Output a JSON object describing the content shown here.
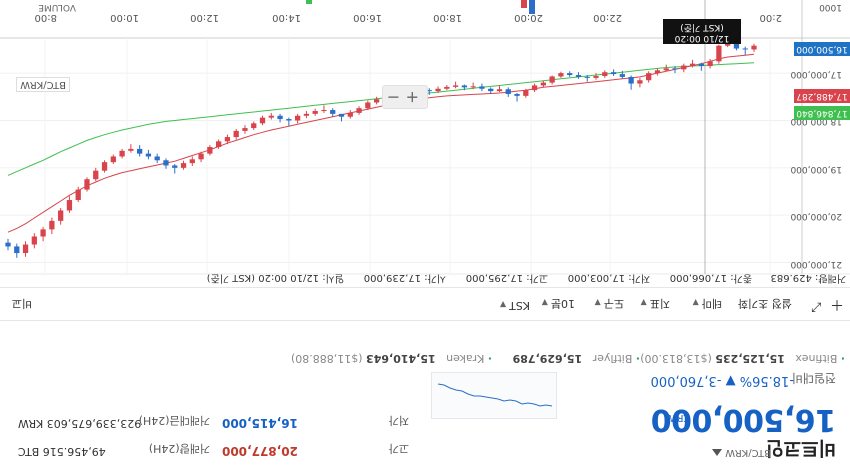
{
  "header": {
    "title": "비트코인",
    "pair": "BTC/KRW",
    "price": "16,500,000",
    "price_unit": "KRW",
    "change_label": "전일대비",
    "change_value": "-18.56% ▼ -3,760,000"
  },
  "stats": {
    "high_label": "고가",
    "high_value": "20,877,000",
    "low_label": "저가",
    "low_value": "16,415,000",
    "volume_label": "거래량(24H)",
    "volume_value": "49,456.516 BTC",
    "amount_label": "거래대금(24H)",
    "amount_value": "923,339,675,603 KRW"
  },
  "exchanges": [
    {
      "name": "Kraken",
      "value": "15,410,643",
      "sub": "($11,888.80)"
    },
    {
      "name": "Bitflyer",
      "value": "15,629,789",
      "sub": ""
    },
    {
      "name": "Bitfinex",
      "value": "15,125,235",
      "sub": "($13,813.00)"
    }
  ],
  "toolbar": {
    "expand_icon": "plus-icon",
    "fullscreen_icon": "expand-icon",
    "reset_label": "설정 초기화",
    "theme_label": "테마",
    "indicator_label": "지표",
    "draw_label": "도구",
    "interval_label": "10분",
    "timezone_label": "KST",
    "compare_label": "비교"
  },
  "chart_data": {
    "type": "candlestick",
    "ohlc_text": {
      "date": "일시: 12/10 00:20 (KST 기준)",
      "open": "시가: 17,239,000",
      "high": "고가: 17,295,000",
      "low": "저가: 17,003,000",
      "close": "종가: 17,066,000",
      "volume": "거래량: 429.683"
    },
    "x_ticks": [
      "8:00",
      "10:00",
      "12:00",
      "14:00",
      "16:00",
      "18:00",
      "20:00",
      "22:00",
      "2:00"
    ],
    "y_ticks": [
      "21,000,000",
      "20,000,000",
      "19,000,000",
      "18,000,000",
      "17,000,000"
    ],
    "crosshair_time": "12/10 00:20",
    "crosshair_note": "(KST 기준)",
    "pair_label": "BTC/KRW",
    "volume_label": "VOLUME",
    "volume_tick": "1000",
    "tags": [
      {
        "value": "16,500,000",
        "color": "#1f73c5"
      },
      {
        "value": "17,488,287",
        "color": "#d9434b"
      },
      {
        "value": "17,846,840",
        "color": "#3fbf4f"
      }
    ],
    "colors": {
      "up": "#d9434b",
      "down": "#2a6fc9",
      "ma_short": "#d9434b",
      "ma_long": "#3fbf4f"
    },
    "ylim": [
      16300000,
      21200000
    ],
    "candles": [
      [
        16.42,
        16.55,
        16.38,
        16.5
      ],
      [
        16.5,
        16.62,
        16.44,
        16.48
      ],
      [
        16.48,
        16.52,
        16.3,
        16.38
      ],
      [
        16.38,
        16.45,
        16.25,
        16.42
      ],
      [
        16.42,
        16.8,
        16.4,
        16.75
      ],
      [
        16.75,
        16.9,
        16.7,
        16.85
      ],
      [
        16.85,
        16.95,
        16.78,
        16.8
      ],
      [
        16.8,
        16.88,
        16.72,
        16.84
      ],
      [
        16.84,
        16.98,
        16.8,
        16.92
      ],
      [
        16.92,
        17.0,
        16.85,
        16.9
      ],
      [
        16.9,
        16.96,
        16.82,
        16.94
      ],
      [
        16.94,
        17.05,
        16.9,
        17.0
      ],
      [
        17.0,
        17.2,
        16.96,
        17.15
      ],
      [
        17.15,
        17.3,
        17.1,
        17.22
      ],
      [
        17.22,
        17.35,
        17.05,
        17.08
      ],
      [
        17.08,
        17.12,
        16.95,
        17.02
      ],
      [
        17.02,
        17.06,
        16.92,
        16.98
      ],
      [
        16.98,
        17.1,
        16.94,
        17.06
      ],
      [
        17.06,
        17.14,
        17.0,
        17.1
      ],
      [
        17.1,
        17.18,
        17.04,
        17.08
      ],
      [
        17.08,
        17.12,
        16.98,
        17.04
      ],
      [
        17.04,
        17.08,
        16.96,
        17.0
      ],
      [
        17.0,
        17.1,
        16.97,
        17.07
      ],
      [
        17.07,
        17.24,
        17.05,
        17.2
      ],
      [
        17.2,
        17.3,
        17.16,
        17.26
      ],
      [
        17.26,
        17.4,
        17.22,
        17.36
      ],
      [
        17.36,
        17.52,
        17.33,
        17.48
      ],
      [
        17.48,
        17.6,
        17.42,
        17.44
      ],
      [
        17.44,
        17.5,
        17.3,
        17.34
      ],
      [
        17.34,
        17.4,
        17.26,
        17.38
      ],
      [
        17.38,
        17.44,
        17.3,
        17.33
      ],
      [
        17.33,
        17.38,
        17.22,
        17.28
      ],
      [
        17.28,
        17.34,
        17.2,
        17.3
      ],
      [
        17.3,
        17.36,
        17.24,
        17.26
      ],
      [
        17.26,
        17.32,
        17.18,
        17.29
      ],
      [
        17.29,
        17.36,
        17.25,
        17.33
      ],
      [
        17.33,
        17.42,
        17.28,
        17.38
      ],
      [
        17.38,
        17.46,
        17.32,
        17.36
      ],
      [
        17.36,
        17.42,
        17.28,
        17.31
      ],
      [
        17.31,
        17.37,
        17.25,
        17.34
      ],
      [
        17.34,
        17.44,
        17.3,
        17.4
      ],
      [
        17.4,
        17.52,
        17.36,
        17.48
      ],
      [
        17.48,
        17.6,
        17.45,
        17.55
      ],
      [
        17.55,
        17.66,
        17.5,
        17.62
      ],
      [
        17.62,
        17.78,
        17.58,
        17.74
      ],
      [
        17.74,
        17.88,
        17.7,
        17.84
      ],
      [
        17.84,
        17.96,
        17.78,
        17.92
      ],
      [
        17.92,
        18.02,
        17.88,
        17.86
      ],
      [
        17.86,
        17.92,
        17.74,
        17.78
      ],
      [
        17.78,
        17.84,
        17.68,
        17.8
      ],
      [
        17.8,
        17.9,
        17.75,
        17.86
      ],
      [
        17.86,
        17.95,
        17.8,
        17.9
      ],
      [
        17.9,
        18.06,
        17.86,
        18.0
      ],
      [
        18.0,
        18.12,
        17.94,
        17.97
      ],
      [
        17.97,
        18.04,
        17.86,
        17.9
      ],
      [
        17.9,
        17.98,
        17.84,
        17.94
      ],
      [
        17.94,
        18.1,
        17.9,
        18.06
      ],
      [
        18.06,
        18.2,
        18.02,
        18.16
      ],
      [
        18.16,
        18.28,
        18.1,
        18.22
      ],
      [
        18.22,
        18.4,
        18.18,
        18.35
      ],
      [
        18.35,
        18.5,
        18.3,
        18.44
      ],
      [
        18.44,
        18.6,
        18.4,
        18.56
      ],
      [
        18.56,
        18.74,
        18.52,
        18.7
      ],
      [
        18.7,
        18.88,
        18.66,
        18.82
      ],
      [
        18.82,
        18.96,
        18.76,
        18.9
      ],
      [
        18.9,
        19.04,
        18.85,
        19.0
      ],
      [
        19.0,
        19.12,
        18.92,
        18.95
      ],
      [
        18.95,
        19.02,
        18.8,
        18.84
      ],
      [
        18.84,
        18.9,
        18.7,
        18.76
      ],
      [
        18.76,
        18.82,
        18.62,
        18.7
      ],
      [
        18.7,
        18.76,
        18.52,
        18.6
      ],
      [
        18.6,
        18.68,
        18.5,
        18.64
      ],
      [
        18.64,
        18.8,
        18.6,
        18.76
      ],
      [
        18.76,
        18.92,
        18.72,
        18.88
      ],
      [
        18.88,
        19.1,
        18.84,
        19.06
      ],
      [
        19.06,
        19.28,
        19.0,
        19.24
      ],
      [
        19.24,
        19.5,
        19.2,
        19.46
      ],
      [
        19.46,
        19.72,
        19.4,
        19.68
      ],
      [
        19.68,
        19.95,
        19.6,
        19.9
      ],
      [
        19.9,
        20.2,
        19.85,
        20.12
      ],
      [
        20.12,
        20.4,
        20.05,
        20.3
      ],
      [
        20.3,
        20.55,
        20.25,
        20.45
      ],
      [
        20.45,
        20.7,
        20.38,
        20.62
      ],
      [
        20.62,
        20.88,
        20.55,
        20.8
      ],
      [
        20.8,
        20.9,
        20.6,
        20.66
      ],
      [
        20.66,
        20.74,
        20.5,
        20.58
      ]
    ],
    "ma_short": [
      16.6,
      16.62,
      16.64,
      16.66,
      16.7,
      16.75,
      16.8,
      16.84,
      16.88,
      16.92,
      16.96,
      17.0,
      17.04,
      17.08,
      17.1,
      17.12,
      17.14,
      17.16,
      17.18,
      17.2,
      17.22,
      17.24,
      17.26,
      17.28,
      17.3,
      17.33,
      17.36,
      17.38,
      17.4,
      17.42,
      17.43,
      17.44,
      17.45,
      17.46,
      17.47,
      17.48,
      17.5,
      17.52,
      17.54,
      17.57,
      17.6,
      17.64,
      17.68,
      17.72,
      17.76,
      17.8,
      17.84,
      17.88,
      17.92,
      17.96,
      18.0,
      18.04,
      18.08,
      18.12,
      18.16,
      18.2,
      18.25,
      18.3,
      18.36,
      18.42,
      18.48,
      18.55,
      18.62,
      18.68,
      18.74,
      18.8,
      18.86,
      18.9,
      18.94,
      18.98,
      19.02,
      19.06,
      19.1,
      19.16,
      19.22,
      19.3,
      19.38,
      19.48,
      19.58,
      19.7,
      19.82,
      19.94,
      20.06,
      20.18,
      20.28,
      20.36
    ],
    "ma_long": [
      16.78,
      16.79,
      16.8,
      16.81,
      16.82,
      16.83,
      16.84,
      16.85,
      16.86,
      16.87,
      16.88,
      16.9,
      16.92,
      16.94,
      16.96,
      16.98,
      17.0,
      17.02,
      17.04,
      17.06,
      17.08,
      17.1,
      17.12,
      17.14,
      17.16,
      17.18,
      17.2,
      17.22,
      17.24,
      17.26,
      17.28,
      17.3,
      17.32,
      17.34,
      17.36,
      17.38,
      17.4,
      17.42,
      17.44,
      17.46,
      17.48,
      17.5,
      17.52,
      17.54,
      17.56,
      17.58,
      17.6,
      17.62,
      17.64,
      17.66,
      17.68,
      17.7,
      17.72,
      17.74,
      17.76,
      17.78,
      17.8,
      17.82,
      17.84,
      17.86,
      17.88,
      17.9,
      17.92,
      17.94,
      17.96,
      17.98,
      18.0,
      18.02,
      18.05,
      18.08,
      18.12,
      18.16,
      18.2,
      18.25,
      18.3,
      18.36,
      18.42,
      18.5,
      18.58,
      18.66,
      18.75,
      18.84,
      18.92,
      19.0,
      19.08,
      19.16
    ]
  }
}
